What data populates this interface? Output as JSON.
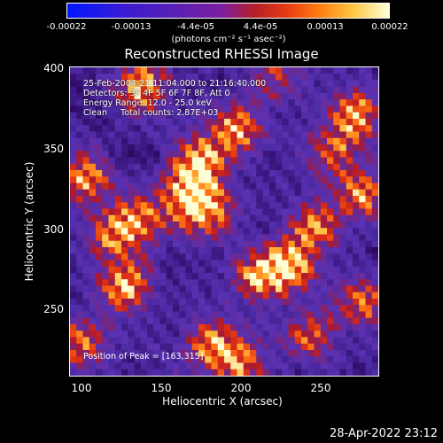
{
  "colorbar": {
    "ticks": [
      "-0.00022",
      "-0.00013",
      "-4.4e-05",
      "4.4e-05",
      "0.00013",
      "0.00022"
    ],
    "units": "(photons cm⁻² s⁻¹ asec⁻²)"
  },
  "title": "Reconstructed RHESSI Image",
  "info": {
    "time": "25-Feb-2004 21:11:04.000 to 21:16:40.000",
    "detectors": "Detectors: 3F 4F 5F 6F 7F 8F, Att 0",
    "energy": "Energy Range: 12.0 - 25.0 keV",
    "clean": "Clean     Total counts: 2.87E+03"
  },
  "peak": "Position of Peak = [163,315]",
  "axes": {
    "xlabel": "Heliocentric X (arcsec)",
    "ylabel": "Heliocentric Y (arcsec)",
    "xticks": [
      "100",
      "150",
      "200",
      "250"
    ],
    "yticks": [
      "400",
      "350",
      "300",
      "250"
    ]
  },
  "stamp": "28-Apr-2022 23:12",
  "image": {
    "x_range": [
      90,
      285
    ],
    "y_range": [
      205,
      400
    ],
    "blobs": [
      {
        "x": 135,
        "y": 388,
        "amp": 0.9
      },
      {
        "x": 172,
        "y": 340,
        "amp": 1.0
      },
      {
        "x": 195,
        "y": 360,
        "amp": 0.85
      },
      {
        "x": 165,
        "y": 318,
        "amp": 1.0
      },
      {
        "x": 178,
        "y": 308,
        "amp": 0.7
      },
      {
        "x": 118,
        "y": 295,
        "amp": 0.8
      },
      {
        "x": 135,
        "y": 305,
        "amp": 0.7
      },
      {
        "x": 125,
        "y": 262,
        "amp": 0.9
      },
      {
        "x": 100,
        "y": 330,
        "amp": 0.8
      },
      {
        "x": 97,
        "y": 225,
        "amp": 0.7
      },
      {
        "x": 230,
        "y": 275,
        "amp": 1.0
      },
      {
        "x": 210,
        "y": 268,
        "amp": 0.85
      },
      {
        "x": 245,
        "y": 300,
        "amp": 0.7
      },
      {
        "x": 270,
        "y": 370,
        "amp": 0.9
      },
      {
        "x": 255,
        "y": 345,
        "amp": 0.6
      },
      {
        "x": 275,
        "y": 320,
        "amp": 0.8
      },
      {
        "x": 180,
        "y": 225,
        "amp": 0.8
      },
      {
        "x": 198,
        "y": 212,
        "amp": 0.7
      },
      {
        "x": 240,
        "y": 230,
        "amp": 0.6
      },
      {
        "x": 275,
        "y": 250,
        "amp": 0.7
      },
      {
        "x": 220,
        "y": 395,
        "amp": 0.5
      }
    ]
  }
}
